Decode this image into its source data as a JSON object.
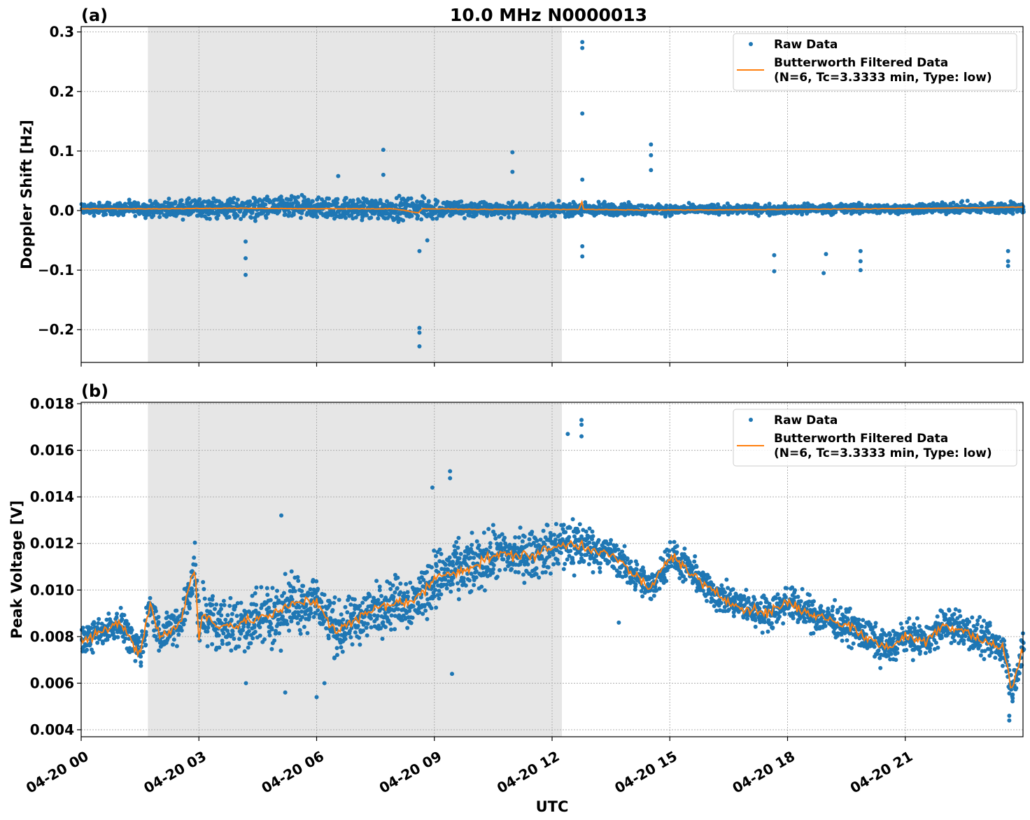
{
  "title": "10.0 MHz N0000013",
  "colors": {
    "raw": "#1f77b4",
    "filtered": "#ff7f0e",
    "shade": "#e6e6e6"
  },
  "chart_data": [
    {
      "type": "scatter",
      "panel_label": "(a)",
      "ylabel": "Doppler Shift [Hz]",
      "xlabel": "",
      "xlim_hours": [
        0,
        24
      ],
      "ylim": [
        -0.255,
        0.309
      ],
      "yticks": [
        -0.2,
        -0.1,
        0.0,
        0.1,
        0.2,
        0.3
      ],
      "ytick_labels": [
        "−0.2",
        "−0.1",
        "0.0",
        "0.1",
        "0.2",
        "0.3"
      ],
      "grid": true,
      "legend_placement": "top-right",
      "shaded_region_hours": [
        1.7,
        12.25
      ],
      "series": [
        {
          "name": "Raw Data",
          "kind": "points",
          "x_hours": [
            0,
            1,
            2,
            3,
            4,
            5,
            6,
            7,
            8,
            9,
            10,
            11,
            12,
            13,
            14,
            15,
            16,
            17,
            18,
            19,
            20,
            21,
            22,
            23,
            24
          ],
          "center": [
            0.003,
            0.003,
            0.003,
            0.003,
            0.004,
            0.004,
            0.004,
            0.003,
            0.003,
            0.003,
            0.002,
            0.002,
            0.002,
            0.002,
            0.002,
            0.001,
            0.002,
            0.002,
            0.002,
            0.003,
            0.003,
            0.003,
            0.004,
            0.004,
            0.005
          ],
          "spread": [
            0.015,
            0.016,
            0.018,
            0.024,
            0.026,
            0.027,
            0.026,
            0.026,
            0.027,
            0.025,
            0.02,
            0.016,
            0.015,
            0.018,
            0.014,
            0.012,
            0.012,
            0.012,
            0.012,
            0.012,
            0.012,
            0.012,
            0.013,
            0.014,
            0.015
          ],
          "outliers": [
            [
              12.77,
              0.283
            ],
            [
              12.77,
              0.273
            ],
            [
              12.77,
              0.163
            ],
            [
              12.77,
              0.052
            ],
            [
              12.77,
              -0.06
            ],
            [
              12.77,
              -0.077
            ],
            [
              14.52,
              0.111
            ],
            [
              14.52,
              0.093
            ],
            [
              14.52,
              0.068
            ],
            [
              7.7,
              0.102
            ],
            [
              7.7,
              0.06
            ],
            [
              6.55,
              0.058
            ],
            [
              10.99,
              0.098
            ],
            [
              10.99,
              0.065
            ],
            [
              8.62,
              -0.197
            ],
            [
              8.62,
              -0.205
            ],
            [
              8.62,
              -0.228
            ],
            [
              8.62,
              -0.068
            ],
            [
              8.82,
              -0.05
            ],
            [
              4.19,
              -0.108
            ],
            [
              4.19,
              -0.08
            ],
            [
              4.19,
              -0.052
            ],
            [
              17.66,
              -0.075
            ],
            [
              17.66,
              -0.102
            ],
            [
              18.92,
              -0.105
            ],
            [
              18.98,
              -0.073
            ],
            [
              19.86,
              -0.068
            ],
            [
              19.86,
              -0.085
            ],
            [
              19.86,
              -0.1
            ],
            [
              23.62,
              -0.068
            ],
            [
              23.62,
              -0.085
            ],
            [
              23.62,
              -0.093
            ]
          ]
        },
        {
          "name": "Butterworth Filtered Data\n(N=6, Tc=3.3333 min, Type: low)",
          "kind": "line",
          "x_hours": [
            0,
            2,
            4,
            6,
            8,
            8.6,
            8.7,
            8.8,
            10,
            12,
            12.7,
            12.75,
            12.8,
            14,
            16,
            18,
            20,
            22,
            24
          ],
          "y": [
            0.003,
            0.003,
            0.004,
            0.003,
            0.003,
            -0.004,
            0.004,
            0.003,
            0.002,
            0.002,
            0.002,
            0.018,
            0.002,
            0.001,
            0.001,
            0.002,
            0.003,
            0.004,
            0.006
          ]
        }
      ],
      "legend": [
        "Raw Data",
        "Butterworth Filtered Data",
        "(N=6, Tc=3.3333 min, Type: low)"
      ]
    },
    {
      "type": "scatter",
      "panel_label": "(b)",
      "ylabel": "Peak Voltage [V]",
      "xlabel": "UTC",
      "xlim_hours": [
        0,
        24
      ],
      "ylim": [
        0.0037,
        0.01806
      ],
      "yticks": [
        0.004,
        0.006,
        0.008,
        0.01,
        0.012,
        0.014,
        0.016,
        0.018
      ],
      "ytick_labels": [
        "0.004",
        "0.006",
        "0.008",
        "0.010",
        "0.012",
        "0.014",
        "0.016",
        "0.018"
      ],
      "xtick_labels": [
        "04-20 00",
        "04-20 03",
        "04-20 06",
        "04-20 09",
        "04-20 12",
        "04-20 15",
        "04-20 18",
        "04-20 21"
      ],
      "xtick_hours": [
        0,
        3,
        6,
        9,
        12,
        15,
        18,
        21
      ],
      "grid": true,
      "legend_placement": "top-right",
      "shaded_region_hours": [
        1.7,
        12.25
      ],
      "series": [
        {
          "name": "Butterworth Filtered Data\n(N=6, Tc=3.3333 min, Type: low)",
          "kind": "line",
          "x_hours": [
            0,
            0.5,
            1,
            1.5,
            1.75,
            2,
            2.5,
            2.9,
            3.0,
            3.1,
            3.5,
            4,
            4.5,
            5,
            5.5,
            6,
            6.5,
            7,
            7.5,
            8,
            8.5,
            9,
            9.5,
            10,
            10.5,
            11,
            11.5,
            12,
            12.5,
            13,
            13.5,
            14,
            14.5,
            15,
            15.5,
            16,
            16.5,
            17,
            17.5,
            18,
            18.5,
            19,
            19.5,
            20,
            20.5,
            21,
            21.5,
            22,
            22.5,
            23,
            23.5,
            23.7,
            24
          ],
          "y": [
            0.0078,
            0.0082,
            0.0086,
            0.0072,
            0.0095,
            0.008,
            0.0085,
            0.011,
            0.0078,
            0.009,
            0.0085,
            0.0085,
            0.0088,
            0.009,
            0.0095,
            0.0095,
            0.0082,
            0.0087,
            0.0092,
            0.0095,
            0.0095,
            0.0105,
            0.0108,
            0.011,
            0.0115,
            0.0115,
            0.0115,
            0.0118,
            0.012,
            0.0118,
            0.0115,
            0.0108,
            0.01,
            0.0115,
            0.0108,
            0.01,
            0.0095,
            0.0092,
            0.009,
            0.0095,
            0.009,
            0.0088,
            0.0085,
            0.008,
            0.0075,
            0.008,
            0.0078,
            0.0085,
            0.0083,
            0.0078,
            0.0075,
            0.0057,
            0.0075
          ]
        },
        {
          "name": "Raw Data",
          "kind": "points",
          "x_hours": [
            0,
            1,
            2,
            3,
            4,
            5,
            6,
            7,
            8,
            9,
            10,
            11,
            12,
            12.5,
            13,
            14,
            15,
            16,
            17,
            18,
            19,
            20,
            21,
            22,
            23,
            24
          ],
          "spread": [
            0.0009,
            0.0009,
            0.0011,
            0.0016,
            0.0018,
            0.0019,
            0.0018,
            0.0016,
            0.0016,
            0.0018,
            0.0017,
            0.0015,
            0.0015,
            0.002,
            0.0012,
            0.001,
            0.001,
            0.001,
            0.001,
            0.0011,
            0.001,
            0.0011,
            0.001,
            0.0011,
            0.0011,
            0.0011
          ],
          "outliers": [
            [
              12.75,
              0.0173
            ],
            [
              12.75,
              0.0171
            ],
            [
              12.75,
              0.0166
            ],
            [
              12.4,
              0.0167
            ],
            [
              9.4,
              0.0151
            ],
            [
              9.4,
              0.0148
            ],
            [
              8.95,
              0.0144
            ],
            [
              5.1,
              0.0132
            ],
            [
              4.2,
              0.006
            ],
            [
              5.2,
              0.0056
            ],
            [
              6.0,
              0.0054
            ],
            [
              6.2,
              0.006
            ],
            [
              9.45,
              0.0064
            ],
            [
              23.65,
              0.0044
            ],
            [
              23.65,
              0.0046
            ],
            [
              13.7,
              0.0086
            ]
          ]
        }
      ],
      "legend": [
        "Raw Data",
        "Butterworth Filtered Data",
        "(N=6, Tc=3.3333 min, Type: low)"
      ]
    }
  ]
}
